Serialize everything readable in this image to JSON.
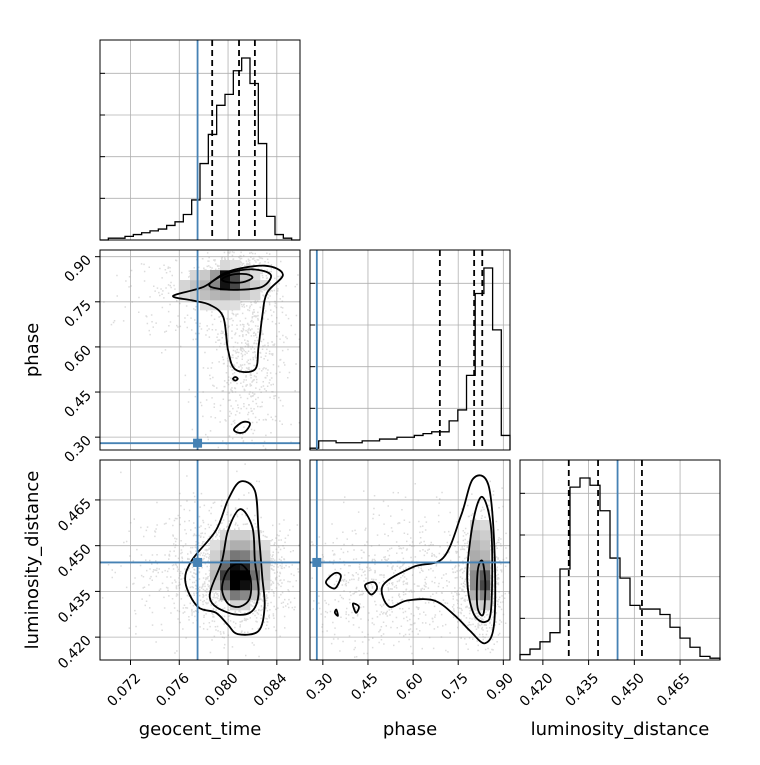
{
  "chart_data": {
    "type": "corner",
    "parameters": [
      "geocent_time",
      "phase",
      "luminosity_distance"
    ],
    "axis_labels": {
      "geocent_time": "geocent_time",
      "phase": "phase",
      "luminosity_distance": "luminosity_distance"
    },
    "ranges": {
      "geocent_time": [
        0.0695,
        0.0859
      ],
      "phase": [
        0.2573,
        0.9222
      ],
      "luminosity_distance": [
        0.4125,
        0.4781
      ]
    },
    "ticks": {
      "geocent_time": [
        "0.072",
        "0.076",
        "0.080",
        "0.084"
      ],
      "phase": [
        "0.30",
        "0.45",
        "0.60",
        "0.75",
        "0.90"
      ],
      "luminosity_distance": [
        "0.420",
        "0.435",
        "0.450",
        "0.465"
      ]
    },
    "truths": {
      "geocent_time": 0.0775,
      "phase": 0.28,
      "luminosity_distance": 0.4445
    },
    "truth_color": "#4682b4",
    "grid": true,
    "marginals": {
      "geocent_time": {
        "counts": [
          0.0,
          0.01,
          0.01,
          0.02,
          0.03,
          0.04,
          0.05,
          0.06,
          0.08,
          0.1,
          0.14,
          0.22,
          0.42,
          0.58,
          0.74,
          0.8,
          0.93,
          1.0,
          0.86,
          0.53,
          0.13,
          0.03,
          0.01,
          0.0
        ],
        "quantiles": [
          0.0787,
          0.0809,
          0.0822
        ]
      },
      "phase": {
        "counts": [
          0.01,
          0.05,
          0.05,
          0.04,
          0.04,
          0.04,
          0.05,
          0.05,
          0.06,
          0.06,
          0.07,
          0.07,
          0.08,
          0.09,
          0.1,
          0.1,
          0.16,
          0.22,
          0.41,
          0.86,
          1.0,
          0.66,
          0.08
        ],
        "quantiles": [
          0.689,
          0.803,
          0.83
        ]
      },
      "luminosity_distance": {
        "counts": [
          0.03,
          0.06,
          0.1,
          0.15,
          0.5,
          0.95,
          1.0,
          0.96,
          0.82,
          0.56,
          0.45,
          0.3,
          0.28,
          0.28,
          0.25,
          0.18,
          0.12,
          0.07,
          0.02,
          0.01
        ],
        "quantiles": [
          0.4285,
          0.4381,
          0.4525
        ]
      }
    }
  }
}
